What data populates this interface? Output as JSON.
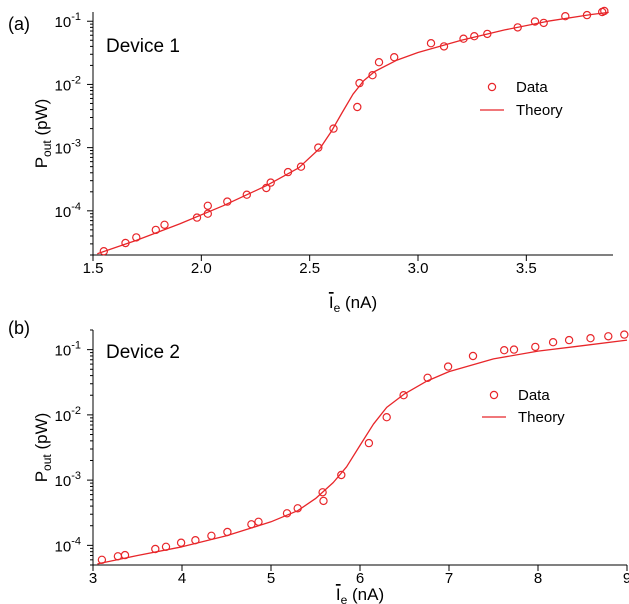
{
  "chart_data": [
    {
      "panel_label": "(a)",
      "device_label": "Device 1",
      "type": "scatter",
      "x_scale": "linear",
      "y_scale": "log",
      "xlim": [
        1.5,
        3.9
      ],
      "ylim": [
        2e-05,
        0.14
      ],
      "x_ticks": [
        1.5,
        2.0,
        2.5,
        3.0,
        3.5
      ],
      "x_tick_labels": [
        "1.5",
        "2.0",
        "2.5",
        "3.0",
        "3.5"
      ],
      "y_ticks": [
        0.0001,
        0.001,
        0.01,
        0.1
      ],
      "y_tick_labels": [
        {
          "base": "10",
          "exp": "-4"
        },
        {
          "base": "10",
          "exp": "-3"
        },
        {
          "base": "10",
          "exp": "-2"
        },
        {
          "base": "10",
          "exp": "-1"
        }
      ],
      "xlabel": {
        "main": "I",
        "sub": "e",
        "unit": " (nA)"
      },
      "ylabel": {
        "main": "P",
        "sub": "out",
        "unit": " (pW)"
      },
      "legend": {
        "position": "right",
        "entries": [
          "Data",
          "Theory"
        ]
      },
      "grid": false,
      "color": "#e8262a",
      "series": [
        {
          "name": "Data",
          "marker": "open-circle",
          "points": [
            [
              1.55,
              2.3e-05
            ],
            [
              1.65,
              3.1e-05
            ],
            [
              1.7,
              3.8e-05
            ],
            [
              1.79,
              5e-05
            ],
            [
              1.83,
              6e-05
            ],
            [
              1.98,
              7.8e-05
            ],
            [
              2.03,
              9e-05
            ],
            [
              2.03,
              0.00012
            ],
            [
              2.12,
              0.00014
            ],
            [
              2.21,
              0.00018
            ],
            [
              2.3,
              0.00023
            ],
            [
              2.32,
              0.00028
            ],
            [
              2.4,
              0.00041
            ],
            [
              2.46,
              0.0005
            ],
            [
              2.54,
              0.001
            ],
            [
              2.61,
              0.002
            ],
            [
              2.72,
              0.0044
            ],
            [
              2.73,
              0.0105
            ],
            [
              2.79,
              0.014
            ],
            [
              2.82,
              0.0225
            ],
            [
              2.89,
              0.027
            ],
            [
              3.06,
              0.045
            ],
            [
              3.12,
              0.04
            ],
            [
              3.21,
              0.053
            ],
            [
              3.26,
              0.058
            ],
            [
              3.32,
              0.063
            ],
            [
              3.46,
              0.08
            ],
            [
              3.54,
              0.099
            ],
            [
              3.58,
              0.094
            ],
            [
              3.68,
              0.12
            ],
            [
              3.78,
              0.125
            ],
            [
              3.85,
              0.14
            ],
            [
              3.86,
              0.145
            ]
          ]
        },
        {
          "name": "Theory",
          "marker": "line",
          "points": [
            [
              1.52,
              2.1e-05
            ],
            [
              1.7,
              3.4e-05
            ],
            [
              1.9,
              6.2e-05
            ],
            [
              2.1,
              0.00012
            ],
            [
              2.3,
              0.00025
            ],
            [
              2.45,
              0.00048
            ],
            [
              2.55,
              0.001
            ],
            [
              2.6,
              0.0018
            ],
            [
              2.65,
              0.0036
            ],
            [
              2.7,
              0.007
            ],
            [
              2.75,
              0.0115
            ],
            [
              2.8,
              0.016
            ],
            [
              2.9,
              0.024
            ],
            [
              3.0,
              0.032
            ],
            [
              3.2,
              0.05
            ],
            [
              3.4,
              0.073
            ],
            [
              3.6,
              0.1
            ],
            [
              3.8,
              0.128
            ],
            [
              3.88,
              0.138
            ]
          ]
        }
      ]
    },
    {
      "panel_label": "(b)",
      "device_label": "Device 2",
      "type": "scatter",
      "x_scale": "linear",
      "y_scale": "log",
      "xlim": [
        3.0,
        9.0
      ],
      "ylim": [
        5e-05,
        0.2
      ],
      "x_ticks": [
        3,
        4,
        5,
        6,
        7,
        8,
        9
      ],
      "x_tick_labels": [
        "3",
        "4",
        "5",
        "6",
        "7",
        "8",
        "9"
      ],
      "y_ticks": [
        0.0001,
        0.001,
        0.01,
        0.1
      ],
      "y_tick_labels": [
        {
          "base": "10",
          "exp": "-4"
        },
        {
          "base": "10",
          "exp": "-3"
        },
        {
          "base": "10",
          "exp": "-2"
        },
        {
          "base": "10",
          "exp": "-1"
        }
      ],
      "xlabel": {
        "main": "I",
        "sub": "e",
        "unit": " (nA)"
      },
      "ylabel": {
        "main": "P",
        "sub": "out",
        "unit": " (pW)"
      },
      "legend": {
        "position": "right",
        "entries": [
          "Data",
          "Theory"
        ]
      },
      "grid": false,
      "color": "#e8262a",
      "series": [
        {
          "name": "Data",
          "marker": "open-circle",
          "points": [
            [
              3.1,
              6e-05
            ],
            [
              3.28,
              6.8e-05
            ],
            [
              3.36,
              7.1e-05
            ],
            [
              3.7,
              8.8e-05
            ],
            [
              3.82,
              9.5e-05
            ],
            [
              3.99,
              0.00011
            ],
            [
              4.15,
              0.00012
            ],
            [
              4.33,
              0.00014
            ],
            [
              4.51,
              0.00016
            ],
            [
              4.78,
              0.00021
            ],
            [
              4.86,
              0.00023
            ],
            [
              5.18,
              0.00031
            ],
            [
              5.3,
              0.00037
            ],
            [
              5.58,
              0.00065
            ],
            [
              5.59,
              0.00048
            ],
            [
              5.79,
              0.0012
            ],
            [
              6.1,
              0.0037
            ],
            [
              6.3,
              0.0092
            ],
            [
              6.49,
              0.02
            ],
            [
              6.76,
              0.037
            ],
            [
              6.99,
              0.055
            ],
            [
              7.27,
              0.08
            ],
            [
              7.62,
              0.098
            ],
            [
              7.73,
              0.1
            ],
            [
              7.97,
              0.11
            ],
            [
              8.17,
              0.13
            ],
            [
              8.35,
              0.14
            ],
            [
              8.59,
              0.15
            ],
            [
              8.79,
              0.16
            ],
            [
              8.97,
              0.17
            ]
          ]
        },
        {
          "name": "Theory",
          "marker": "line",
          "points": [
            [
              3.05,
              5.2e-05
            ],
            [
              3.5,
              7e-05
            ],
            [
              4.0,
              9.5e-05
            ],
            [
              4.5,
              0.00014
            ],
            [
              5.0,
              0.00023
            ],
            [
              5.3,
              0.00034
            ],
            [
              5.5,
              0.00052
            ],
            [
              5.7,
              0.00092
            ],
            [
              5.85,
              0.0016
            ],
            [
              6.0,
              0.0034
            ],
            [
              6.15,
              0.0072
            ],
            [
              6.3,
              0.013
            ],
            [
              6.5,
              0.021
            ],
            [
              6.75,
              0.033
            ],
            [
              7.0,
              0.046
            ],
            [
              7.5,
              0.072
            ],
            [
              8.0,
              0.095
            ],
            [
              8.5,
              0.115
            ],
            [
              9.0,
              0.14
            ]
          ]
        }
      ]
    }
  ]
}
